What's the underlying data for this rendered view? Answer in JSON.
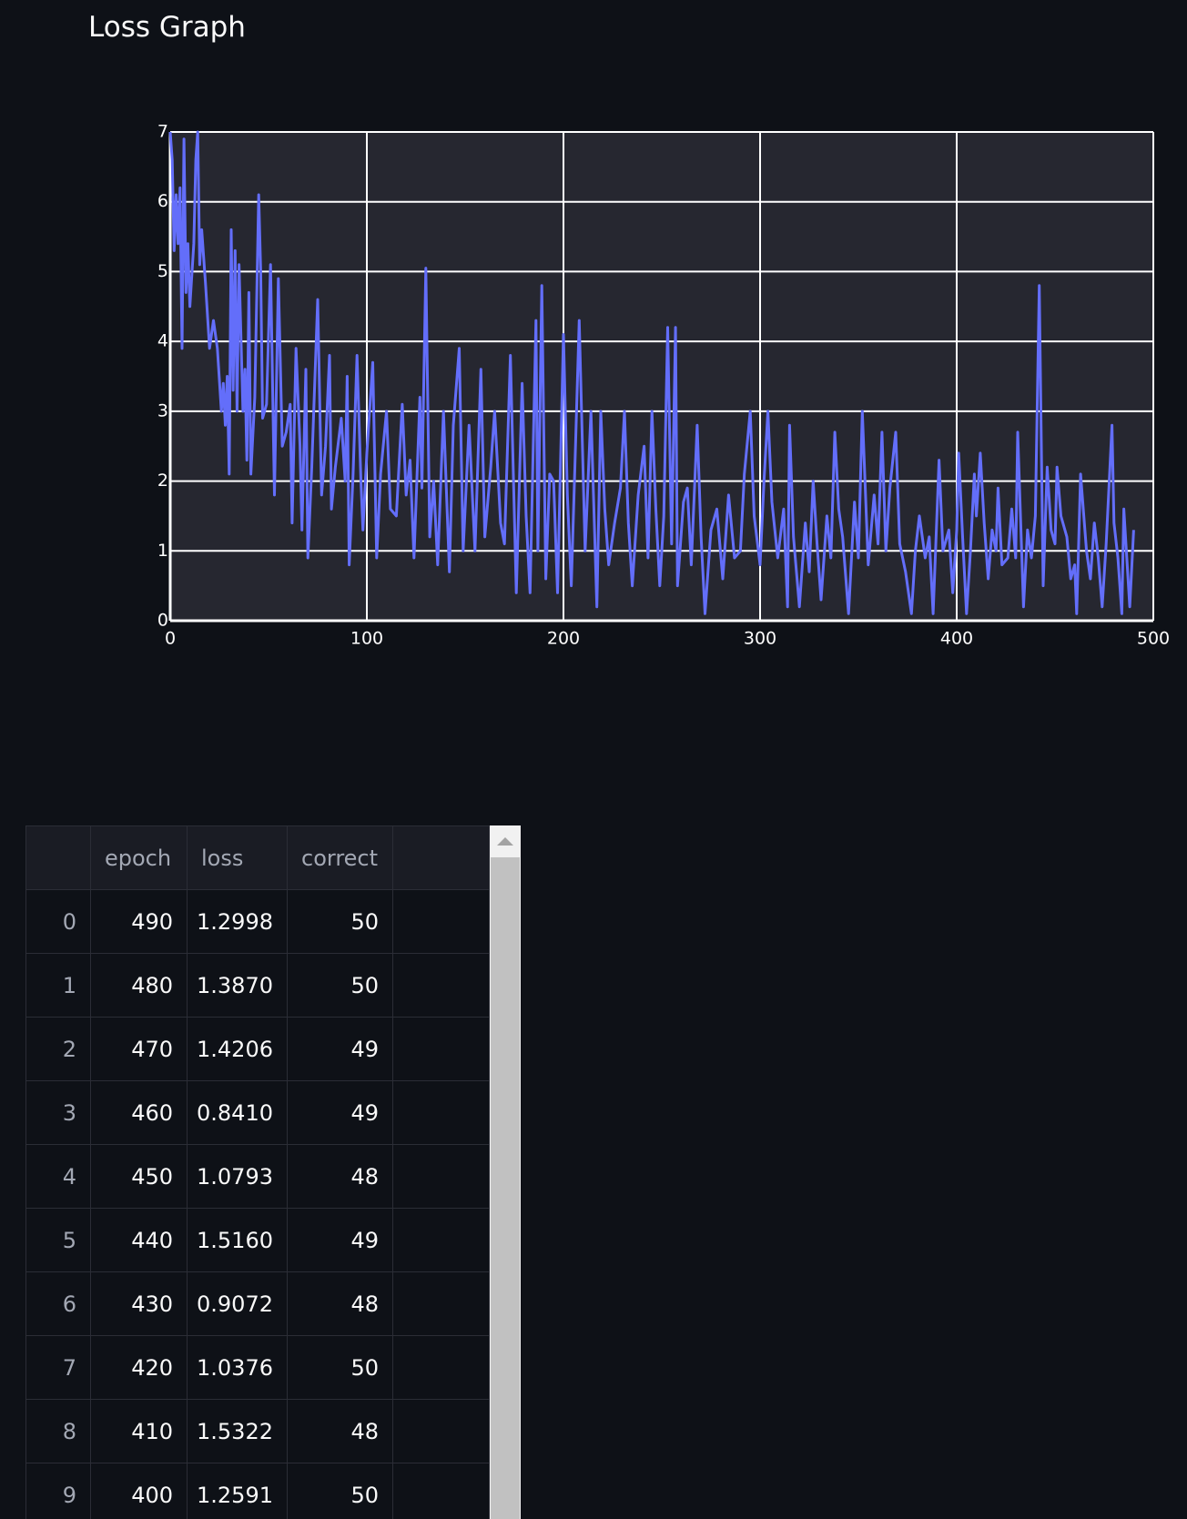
{
  "chart_data": {
    "type": "line",
    "title": "Loss Graph",
    "color": "#636efa",
    "grid": true,
    "xlim": [
      0,
      500
    ],
    "xticks": [
      0,
      100,
      200,
      300,
      400,
      500
    ],
    "ylim": [
      0,
      7
    ],
    "yticks": [
      0,
      1,
      2,
      3,
      4,
      5,
      6,
      7
    ],
    "x": [
      0,
      1,
      2,
      3,
      4,
      5,
      6,
      7,
      8,
      9,
      10,
      12,
      13,
      14,
      15,
      16,
      18,
      20,
      22,
      24,
      26,
      27,
      28,
      29,
      30,
      31,
      32,
      33,
      34,
      35,
      37,
      38,
      39,
      40,
      41,
      43,
      45,
      46,
      47,
      49,
      51,
      53,
      55,
      57,
      59,
      61,
      62,
      64,
      66,
      67,
      69,
      70,
      72,
      75,
      77,
      79,
      81,
      82,
      84,
      87,
      89,
      90,
      91,
      93,
      95,
      97,
      98,
      100,
      103,
      105,
      107,
      110,
      112,
      115,
      118,
      120,
      122,
      124,
      127,
      128,
      130,
      132,
      134,
      136,
      139,
      142,
      144,
      147,
      149,
      152,
      155,
      158,
      160,
      163,
      165,
      168,
      170,
      173,
      176,
      179,
      181,
      183,
      186,
      187,
      189,
      191,
      193,
      195,
      197,
      200,
      202,
      204,
      206,
      208,
      211,
      214,
      217,
      219,
      221,
      223,
      226,
      229,
      231,
      233,
      235,
      238,
      241,
      243,
      245,
      247,
      249,
      251,
      253,
      255,
      257,
      258,
      261,
      263,
      265,
      268,
      270,
      272,
      275,
      278,
      281,
      284,
      287,
      290,
      292,
      295,
      297,
      300,
      302,
      304,
      306,
      309,
      312,
      314,
      315,
      317,
      320,
      323,
      325,
      327,
      329,
      331,
      334,
      336,
      338,
      340,
      342,
      345,
      348,
      350,
      352,
      355,
      358,
      360,
      362,
      364,
      366,
      369,
      371,
      374,
      377,
      379,
      381,
      384,
      386,
      388,
      391,
      393,
      396,
      398,
      400,
      401,
      403,
      405,
      407,
      409,
      410,
      412,
      414,
      416,
      418,
      420,
      421,
      423,
      426,
      428,
      430,
      431,
      434,
      436,
      438,
      440,
      442,
      444,
      446,
      448,
      450,
      451,
      453,
      456,
      458,
      460,
      461,
      463,
      466,
      468,
      470,
      472,
      474,
      476,
      479,
      480,
      482,
      484,
      485,
      488,
      490
    ],
    "values": [
      7.0,
      6.6,
      5.3,
      6.1,
      5.4,
      6.2,
      3.9,
      6.9,
      4.7,
      5.4,
      4.5,
      5.4,
      6.6,
      7.0,
      5.1,
      5.6,
      4.8,
      3.9,
      4.3,
      3.9,
      3.0,
      3.4,
      2.8,
      3.5,
      2.1,
      5.6,
      3.3,
      5.3,
      3.0,
      5.1,
      3.0,
      3.6,
      2.3,
      4.7,
      2.1,
      3.2,
      6.1,
      5.0,
      2.9,
      3.1,
      5.1,
      1.8,
      4.9,
      2.5,
      2.7,
      3.1,
      1.4,
      3.9,
      2.5,
      1.3,
      3.6,
      0.9,
      2.2,
      4.6,
      1.8,
      2.5,
      3.8,
      1.6,
      2.2,
      2.9,
      2.0,
      3.5,
      0.8,
      2.1,
      3.8,
      2.0,
      1.3,
      2.4,
      3.7,
      0.9,
      2.1,
      3.0,
      1.6,
      1.5,
      3.1,
      1.8,
      2.3,
      0.9,
      3.2,
      1.9,
      5.05,
      1.2,
      2.0,
      0.8,
      3.0,
      0.7,
      2.8,
      3.9,
      1.0,
      2.8,
      1.0,
      3.6,
      1.2,
      2.2,
      3.0,
      1.4,
      1.1,
      3.8,
      0.4,
      3.4,
      1.5,
      0.4,
      4.3,
      1.0,
      4.8,
      0.6,
      2.1,
      2.0,
      0.4,
      4.1,
      1.8,
      0.5,
      2.4,
      4.3,
      1.0,
      3.0,
      0.2,
      3.0,
      1.6,
      0.8,
      1.4,
      1.9,
      3.0,
      1.4,
      0.5,
      1.8,
      2.5,
      0.9,
      3.0,
      1.6,
      0.5,
      1.5,
      4.2,
      1.1,
      4.2,
      0.5,
      1.7,
      1.9,
      0.8,
      2.8,
      1.2,
      0.1,
      1.3,
      1.6,
      0.6,
      1.8,
      0.9,
      1.0,
      2.1,
      3.0,
      1.5,
      0.8,
      2.0,
      3.0,
      1.7,
      0.9,
      1.6,
      0.2,
      2.8,
      1.2,
      0.2,
      1.4,
      0.7,
      2.0,
      1.1,
      0.3,
      1.5,
      0.9,
      2.7,
      1.6,
      1.2,
      0.1,
      1.7,
      0.9,
      3.0,
      0.8,
      1.8,
      1.1,
      2.7,
      1.0,
      1.9,
      2.7,
      1.1,
      0.7,
      0.1,
      1.0,
      1.5,
      0.9,
      1.2,
      0.1,
      2.3,
      1.0,
      1.3,
      0.4,
      1.3,
      2.4,
      1.2,
      0.1,
      1.0,
      2.1,
      1.5,
      2.4,
      1.4,
      0.6,
      1.3,
      1.0,
      1.9,
      0.8,
      0.9,
      1.6,
      0.9,
      2.7,
      0.2,
      1.3,
      0.9,
      1.5,
      4.8,
      0.5,
      2.2,
      1.3,
      1.1,
      2.2,
      1.5,
      1.2,
      0.6,
      0.8,
      0.1,
      2.1,
      1.0,
      0.6,
      1.4,
      0.9,
      0.2,
      1.1,
      2.8,
      1.4,
      0.9,
      0.1,
      1.6,
      0.2,
      1.3
    ]
  },
  "table": {
    "columns": [
      "epoch",
      "loss",
      "correct"
    ],
    "rows": [
      [
        0,
        490,
        "1.2998",
        50
      ],
      [
        1,
        480,
        "1.3870",
        50
      ],
      [
        2,
        470,
        "1.4206",
        49
      ],
      [
        3,
        460,
        "0.8410",
        49
      ],
      [
        4,
        450,
        "1.0793",
        48
      ],
      [
        5,
        440,
        "1.5160",
        49
      ],
      [
        6,
        430,
        "0.9072",
        48
      ],
      [
        7,
        420,
        "1.0376",
        50
      ],
      [
        8,
        410,
        "1.5322",
        48
      ],
      [
        9,
        400,
        "1.2591",
        50
      ]
    ]
  }
}
